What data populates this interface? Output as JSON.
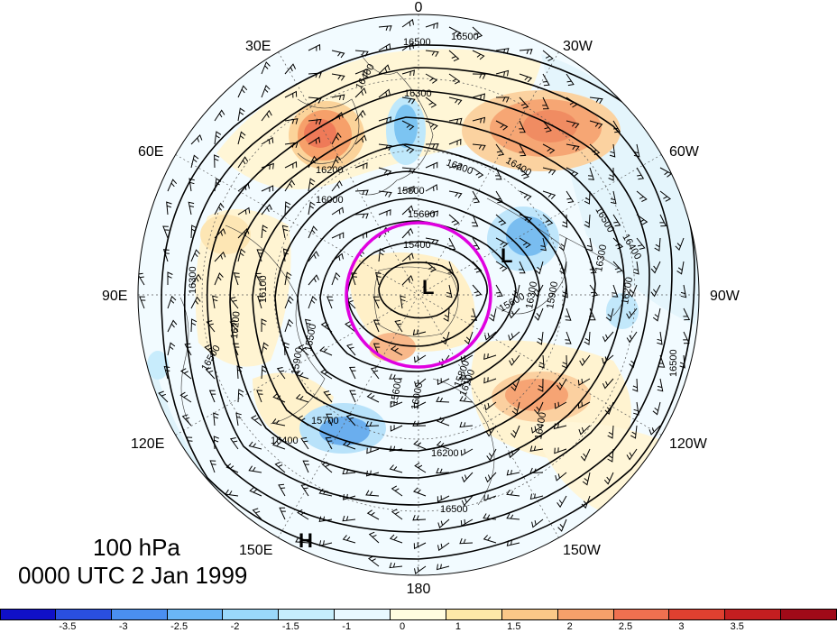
{
  "map": {
    "longitude_labels": [
      {
        "text": "0",
        "pos": "top"
      },
      {
        "text": "30W",
        "pos": "top-right"
      },
      {
        "text": "60W",
        "pos": "right-upper"
      },
      {
        "text": "90W",
        "pos": "right"
      },
      {
        "text": "120W",
        "pos": "right-lower"
      },
      {
        "text": "150W",
        "pos": "bottom-right"
      },
      {
        "text": "180",
        "pos": "bottom"
      },
      {
        "text": "150E",
        "pos": "bottom-left"
      },
      {
        "text": "120E",
        "pos": "left-lower"
      },
      {
        "text": "90E",
        "pos": "left"
      },
      {
        "text": "60E",
        "pos": "left-upper"
      },
      {
        "text": "30E",
        "pos": "top-left"
      }
    ],
    "contour_labels": [
      "16500",
      "16500",
      "16400",
      "16300",
      "16200",
      "16000",
      "15800",
      "15600",
      "15400",
      "16400",
      "16200",
      "16500",
      "16400",
      "16300",
      "16100",
      "16200",
      "16500",
      "15500",
      "15900",
      "15700",
      "16400",
      "15600",
      "16000",
      "15800",
      "16100",
      "16200",
      "16300",
      "16400",
      "16500",
      "16300",
      "16200",
      "15600",
      "15900",
      "16500"
    ],
    "pressure_markers": [
      {
        "text": "L",
        "id": "low-pole"
      },
      {
        "text": "L",
        "id": "low-east"
      },
      {
        "text": "H",
        "id": "high-south"
      }
    ],
    "highlight_circle_color": "#e000e0"
  },
  "caption": {
    "level": "100 hPa",
    "time": "0000 UTC 2 Jan 1999"
  },
  "colorbar": {
    "colors": [
      "#1010c8",
      "#2a4fe0",
      "#4a8ff0",
      "#6ab6f6",
      "#9ad8fa",
      "#c6eefc",
      "#e8f8ff",
      "#fffce0",
      "#fde8a8",
      "#fbc888",
      "#f6a06a",
      "#f07050",
      "#e04030",
      "#c41e20",
      "#a00a18"
    ],
    "tick_labels": [
      "-3.5",
      "-3",
      "-2.5",
      "-2",
      "-1.5",
      "-1",
      "0",
      "1",
      "1.5",
      "2",
      "2.5",
      "3",
      "3.5"
    ]
  }
}
